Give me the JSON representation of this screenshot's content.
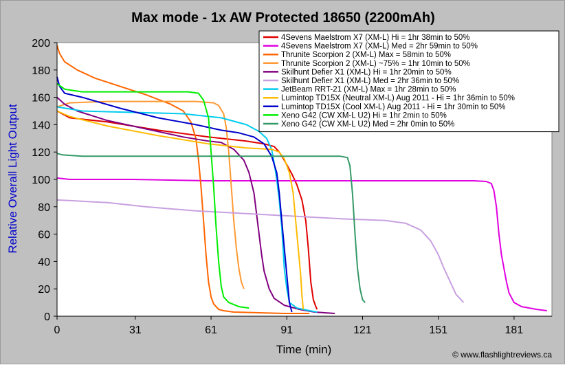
{
  "chart_data": {
    "type": "line",
    "title": "Max mode - 1x AW Protected 18650 (2200mAh)",
    "xlabel": "Time (min)",
    "ylabel": "Relative Overall Light Output",
    "credit": "© www.flashlightreviews.ca",
    "xlim": [
      0,
      196
    ],
    "ylim": [
      0,
      200
    ],
    "xticks": [
      0,
      31,
      61,
      91,
      121,
      151,
      181
    ],
    "yticks": [
      0,
      20,
      40,
      60,
      80,
      100,
      120,
      140,
      160,
      180,
      200
    ],
    "grid": false,
    "legend_position": "top-right",
    "series": [
      {
        "name": "4Sevens Maelstrom X7 (XM-L) Hi = 1hr 38min to 50%",
        "color": "#e00000",
        "points": [
          [
            0,
            150
          ],
          [
            5,
            145
          ],
          [
            20,
            142
          ],
          [
            40,
            136
          ],
          [
            60,
            131
          ],
          [
            75,
            128
          ],
          [
            82,
            126
          ],
          [
            86,
            124
          ],
          [
            88,
            120
          ],
          [
            90,
            114
          ],
          [
            93,
            104
          ],
          [
            95,
            96
          ],
          [
            97,
            85
          ],
          [
            98.5,
            70
          ],
          [
            99.5,
            50
          ],
          [
            100.5,
            25
          ],
          [
            101.5,
            12
          ],
          [
            102.5,
            7
          ],
          [
            103,
            5
          ]
        ]
      },
      {
        "name": "4Sevens Maelstrom X7 (XM-L) Med = 2hr 59min to 50%",
        "color": "#e000e0",
        "points": [
          [
            0,
            101
          ],
          [
            5,
            100
          ],
          [
            30,
            100
          ],
          [
            60,
            99
          ],
          [
            90,
            99
          ],
          [
            120,
            99
          ],
          [
            150,
            99
          ],
          [
            165,
            99
          ],
          [
            170,
            98.5
          ],
          [
            172,
            97
          ],
          [
            173,
            92
          ],
          [
            174,
            80
          ],
          [
            175,
            60
          ],
          [
            176,
            45
          ],
          [
            177,
            35
          ],
          [
            178,
            25
          ],
          [
            179,
            17
          ],
          [
            181,
            10
          ],
          [
            184,
            7
          ],
          [
            187,
            6
          ],
          [
            190,
            5
          ],
          [
            194,
            4
          ]
        ]
      },
      {
        "name": "Thrunite Scorpion 2 (XM-L) Max = 58min to 50%",
        "color": "#ff6600",
        "points": [
          [
            0,
            198
          ],
          [
            1,
            192
          ],
          [
            3,
            186
          ],
          [
            8,
            180
          ],
          [
            15,
            174
          ],
          [
            25,
            168
          ],
          [
            35,
            162
          ],
          [
            45,
            155
          ],
          [
            50,
            150
          ],
          [
            53,
            142
          ],
          [
            55,
            130
          ],
          [
            56,
            115
          ],
          [
            57,
            95
          ],
          [
            58,
            70
          ],
          [
            59,
            45
          ],
          [
            60,
            25
          ],
          [
            61,
            14
          ],
          [
            62,
            9
          ],
          [
            63,
            7
          ],
          [
            64,
            5
          ],
          [
            66,
            4
          ],
          [
            70,
            3
          ],
          [
            90,
            2
          ],
          [
            100,
            2
          ]
        ]
      },
      {
        "name": "Thrunite Scorpion 2 (XM-L) ~75% = 1hr 10min to 50%",
        "color": "#ff9933",
        "points": [
          [
            0,
            153
          ],
          [
            5,
            156
          ],
          [
            20,
            157
          ],
          [
            40,
            157
          ],
          [
            55,
            157
          ],
          [
            62,
            156
          ],
          [
            64,
            154
          ],
          [
            66,
            148
          ],
          [
            67,
            138
          ],
          [
            68,
            120
          ],
          [
            69,
            95
          ],
          [
            70,
            70
          ],
          [
            71,
            50
          ],
          [
            72,
            35
          ],
          [
            73,
            25
          ],
          [
            74,
            20
          ]
        ]
      },
      {
        "name": "Skilhunt Defier X1 (XM-L) Hi = 1hr 20min to 50%",
        "color": "#800080",
        "points": [
          [
            0,
            160
          ],
          [
            3,
            155
          ],
          [
            8,
            150
          ],
          [
            20,
            143
          ],
          [
            35,
            137
          ],
          [
            50,
            131
          ],
          [
            60,
            128
          ],
          [
            65,
            127
          ],
          [
            70,
            122
          ],
          [
            74,
            114
          ],
          [
            76,
            105
          ],
          [
            78,
            90
          ],
          [
            79,
            75
          ],
          [
            80,
            60
          ],
          [
            81,
            45
          ],
          [
            82,
            33
          ],
          [
            84,
            20
          ],
          [
            86,
            13
          ],
          [
            90,
            8
          ],
          [
            96,
            5
          ],
          [
            102,
            3
          ],
          [
            110,
            2
          ]
        ]
      },
      {
        "name": "Skilhunt Defier X1 (XM-L) Med = 2hr 36min to 50%",
        "color": "#c8a0e0",
        "points": [
          [
            0,
            85
          ],
          [
            10,
            84
          ],
          [
            20,
            83
          ],
          [
            35,
            80
          ],
          [
            55,
            77
          ],
          [
            75,
            75
          ],
          [
            95,
            73
          ],
          [
            115,
            71
          ],
          [
            130,
            70
          ],
          [
            138,
            68
          ],
          [
            144,
            63
          ],
          [
            148,
            55
          ],
          [
            151,
            45
          ],
          [
            153,
            36
          ],
          [
            155,
            28
          ],
          [
            157,
            20
          ],
          [
            158,
            16
          ],
          [
            160,
            12
          ],
          [
            161,
            10
          ]
        ]
      },
      {
        "name": "JetBeam RRT-21 (XM-L) Max = 1hr 28min to 50%",
        "color": "#00ccee",
        "points": [
          [
            0,
            153
          ],
          [
            10,
            150
          ],
          [
            30,
            149
          ],
          [
            50,
            148
          ],
          [
            65,
            145
          ],
          [
            75,
            140
          ],
          [
            80,
            135
          ],
          [
            83,
            130
          ],
          [
            85,
            122
          ],
          [
            86,
            112
          ],
          [
            87,
            100
          ],
          [
            88,
            85
          ],
          [
            89,
            65
          ],
          [
            89.5,
            50
          ],
          [
            90,
            35
          ],
          [
            91,
            20
          ],
          [
            92,
            10
          ],
          [
            95,
            6
          ],
          [
            100,
            4
          ],
          [
            103,
            3
          ]
        ]
      },
      {
        "name": "Lumintop TD15X (Neutral XM-L) Aug 2011 - Hi = 1hr 36min to 50%",
        "color": "#ffbb00",
        "points": [
          [
            0,
            150
          ],
          [
            5,
            146
          ],
          [
            20,
            139
          ],
          [
            40,
            132
          ],
          [
            60,
            126
          ],
          [
            75,
            123
          ],
          [
            85,
            122
          ],
          [
            88,
            120
          ],
          [
            90,
            115
          ],
          [
            92,
            105
          ],
          [
            93.5,
            90
          ],
          [
            94.5,
            70
          ],
          [
            95.5,
            50
          ],
          [
            96.5,
            30
          ],
          [
            97,
            15
          ],
          [
            97.5,
            5
          ]
        ]
      },
      {
        "name": "Lumintop TD15X (Cool XM-L) Aug 2011 - Hi = 1hr 30min to 50%",
        "color": "#0000cc",
        "points": [
          [
            0,
            175
          ],
          [
            1,
            168
          ],
          [
            3,
            163
          ],
          [
            10,
            160
          ],
          [
            25,
            152
          ],
          [
            40,
            145
          ],
          [
            55,
            140
          ],
          [
            65,
            136
          ],
          [
            72,
            134
          ],
          [
            78,
            131
          ],
          [
            82,
            126
          ],
          [
            85,
            117
          ],
          [
            87,
            105
          ],
          [
            88,
            90
          ],
          [
            89,
            70
          ],
          [
            90,
            50
          ],
          [
            91,
            30
          ],
          [
            92,
            10
          ],
          [
            93,
            3
          ]
        ]
      },
      {
        "name": "Xeno G42 (CW XM-L U2) Hi = 1hr 2min to 50%",
        "color": "#00ee00",
        "points": [
          [
            0,
            170
          ],
          [
            3,
            166
          ],
          [
            10,
            164
          ],
          [
            30,
            164
          ],
          [
            45,
            164
          ],
          [
            52,
            164
          ],
          [
            56,
            163
          ],
          [
            58,
            158
          ],
          [
            60,
            145
          ],
          [
            61,
            120
          ],
          [
            62,
            95
          ],
          [
            63,
            65
          ],
          [
            64,
            40
          ],
          [
            65,
            22
          ],
          [
            66,
            14
          ],
          [
            68,
            10
          ],
          [
            72,
            7
          ],
          [
            76,
            6
          ]
        ]
      },
      {
        "name": "Xeno G42 (CW XM-L U2) Med = 2hr 0min to 50%",
        "color": "#339966",
        "points": [
          [
            0,
            119
          ],
          [
            2,
            118
          ],
          [
            10,
            117
          ],
          [
            30,
            117
          ],
          [
            60,
            117
          ],
          [
            90,
            117
          ],
          [
            112,
            117
          ],
          [
            115,
            116
          ],
          [
            116,
            110
          ],
          [
            117,
            90
          ],
          [
            118,
            60
          ],
          [
            119,
            35
          ],
          [
            120,
            20
          ],
          [
            121,
            12
          ],
          [
            122,
            10
          ]
        ]
      }
    ]
  }
}
